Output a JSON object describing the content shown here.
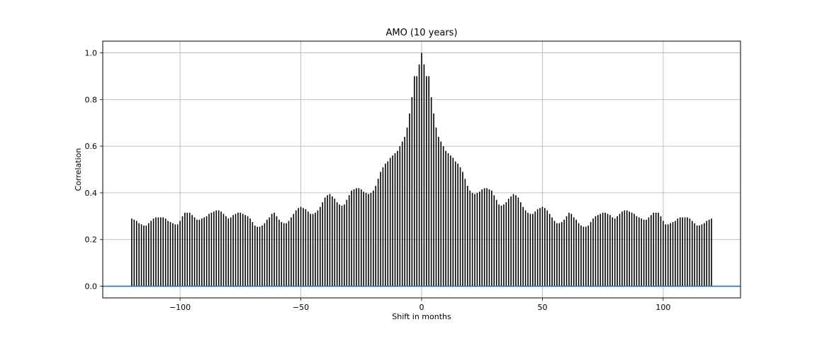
{
  "chart_data": {
    "type": "bar",
    "title": "AMO (10 years)",
    "xlabel": "Shift in months",
    "ylabel": "Correlation",
    "xlim": [
      -132,
      132
    ],
    "ylim": [
      -0.05,
      1.05
    ],
    "xticks": [
      -100,
      -50,
      0,
      50,
      100
    ],
    "xtick_labels": [
      "−100",
      "−50",
      "0",
      "50",
      "100"
    ],
    "yticks": [
      0.0,
      0.2,
      0.4,
      0.6,
      0.8,
      1.0
    ],
    "ytick_labels": [
      "0.0",
      "0.2",
      "0.4",
      "0.6",
      "0.8",
      "1.0"
    ],
    "grid": true,
    "bar_color": "#000000",
    "baseline_color": "#1f77b4",
    "baseline_y": 0.0,
    "x": [
      -120,
      -119,
      -118,
      -117,
      -116,
      -115,
      -114,
      -113,
      -112,
      -111,
      -110,
      -109,
      -108,
      -107,
      -106,
      -105,
      -104,
      -103,
      -102,
      -101,
      -100,
      -99,
      -98,
      -97,
      -96,
      -95,
      -94,
      -93,
      -92,
      -91,
      -90,
      -89,
      -88,
      -87,
      -86,
      -85,
      -84,
      -83,
      -82,
      -81,
      -80,
      -79,
      -78,
      -77,
      -76,
      -75,
      -74,
      -73,
      -72,
      -71,
      -70,
      -69,
      -68,
      -67,
      -66,
      -65,
      -64,
      -63,
      -62,
      -61,
      -60,
      -59,
      -58,
      -57,
      -56,
      -55,
      -54,
      -53,
      -52,
      -51,
      -50,
      -49,
      -48,
      -47,
      -46,
      -45,
      -44,
      -43,
      -42,
      -41,
      -40,
      -39,
      -38,
      -37,
      -36,
      -35,
      -34,
      -33,
      -32,
      -31,
      -30,
      -29,
      -28,
      -27,
      -26,
      -25,
      -24,
      -23,
      -22,
      -21,
      -20,
      -19,
      -18,
      -17,
      -16,
      -15,
      -14,
      -13,
      -12,
      -11,
      -10,
      -9,
      -8,
      -7,
      -6,
      -5,
      -4,
      -3,
      -2,
      -1,
      0,
      1,
      2,
      3,
      4,
      5,
      6,
      7,
      8,
      9,
      10,
      11,
      12,
      13,
      14,
      15,
      16,
      17,
      18,
      19,
      20,
      21,
      22,
      23,
      24,
      25,
      26,
      27,
      28,
      29,
      30,
      31,
      32,
      33,
      34,
      35,
      36,
      37,
      38,
      39,
      40,
      41,
      42,
      43,
      44,
      45,
      46,
      47,
      48,
      49,
      50,
      51,
      52,
      53,
      54,
      55,
      56,
      57,
      58,
      59,
      60,
      61,
      62,
      63,
      64,
      65,
      66,
      67,
      68,
      69,
      70,
      71,
      72,
      73,
      74,
      75,
      76,
      77,
      78,
      79,
      80,
      81,
      82,
      83,
      84,
      85,
      86,
      87,
      88,
      89,
      90,
      91,
      92,
      93,
      94,
      95,
      96,
      97,
      98,
      99,
      100,
      101,
      102,
      103,
      104,
      105,
      106,
      107,
      108,
      109,
      110,
      111,
      112,
      113,
      114,
      115,
      116,
      117,
      118,
      119,
      120
    ],
    "values": [
      0.29,
      0.285,
      0.28,
      0.27,
      0.265,
      0.26,
      0.26,
      0.27,
      0.28,
      0.29,
      0.295,
      0.295,
      0.295,
      0.295,
      0.29,
      0.28,
      0.275,
      0.27,
      0.265,
      0.265,
      0.28,
      0.3,
      0.315,
      0.315,
      0.315,
      0.305,
      0.295,
      0.285,
      0.285,
      0.29,
      0.295,
      0.3,
      0.31,
      0.315,
      0.32,
      0.325,
      0.325,
      0.32,
      0.31,
      0.3,
      0.29,
      0.295,
      0.305,
      0.31,
      0.315,
      0.315,
      0.31,
      0.305,
      0.3,
      0.29,
      0.275,
      0.26,
      0.255,
      0.255,
      0.26,
      0.27,
      0.285,
      0.295,
      0.31,
      0.315,
      0.3,
      0.285,
      0.275,
      0.27,
      0.27,
      0.28,
      0.295,
      0.31,
      0.325,
      0.335,
      0.34,
      0.335,
      0.33,
      0.32,
      0.31,
      0.31,
      0.315,
      0.325,
      0.34,
      0.36,
      0.38,
      0.39,
      0.395,
      0.385,
      0.375,
      0.36,
      0.35,
      0.345,
      0.35,
      0.37,
      0.39,
      0.41,
      0.415,
      0.42,
      0.42,
      0.415,
      0.405,
      0.4,
      0.395,
      0.4,
      0.41,
      0.43,
      0.46,
      0.49,
      0.51,
      0.525,
      0.535,
      0.55,
      0.56,
      0.57,
      0.58,
      0.6,
      0.62,
      0.64,
      0.68,
      0.74,
      0.81,
      0.9,
      0.9,
      0.95,
      1.0,
      0.95,
      0.9,
      0.9,
      0.81,
      0.74,
      0.68,
      0.64,
      0.62,
      0.6,
      0.58,
      0.57,
      0.56,
      0.55,
      0.535,
      0.525,
      0.51,
      0.49,
      0.46,
      0.43,
      0.41,
      0.4,
      0.395,
      0.4,
      0.405,
      0.415,
      0.42,
      0.42,
      0.415,
      0.41,
      0.39,
      0.37,
      0.35,
      0.345,
      0.35,
      0.36,
      0.375,
      0.385,
      0.395,
      0.39,
      0.38,
      0.36,
      0.34,
      0.325,
      0.315,
      0.31,
      0.31,
      0.32,
      0.33,
      0.335,
      0.34,
      0.335,
      0.325,
      0.31,
      0.295,
      0.28,
      0.27,
      0.27,
      0.275,
      0.285,
      0.3,
      0.315,
      0.31,
      0.295,
      0.285,
      0.27,
      0.26,
      0.255,
      0.255,
      0.26,
      0.275,
      0.29,
      0.3,
      0.305,
      0.31,
      0.315,
      0.315,
      0.31,
      0.305,
      0.295,
      0.29,
      0.3,
      0.31,
      0.32,
      0.325,
      0.325,
      0.32,
      0.315,
      0.31,
      0.3,
      0.295,
      0.29,
      0.285,
      0.285,
      0.295,
      0.305,
      0.315,
      0.315,
      0.315,
      0.3,
      0.28,
      0.265,
      0.265,
      0.27,
      0.275,
      0.28,
      0.29,
      0.295,
      0.295,
      0.295,
      0.295,
      0.29,
      0.28,
      0.27,
      0.26,
      0.26,
      0.265,
      0.27,
      0.28,
      0.285,
      0.29
    ]
  }
}
